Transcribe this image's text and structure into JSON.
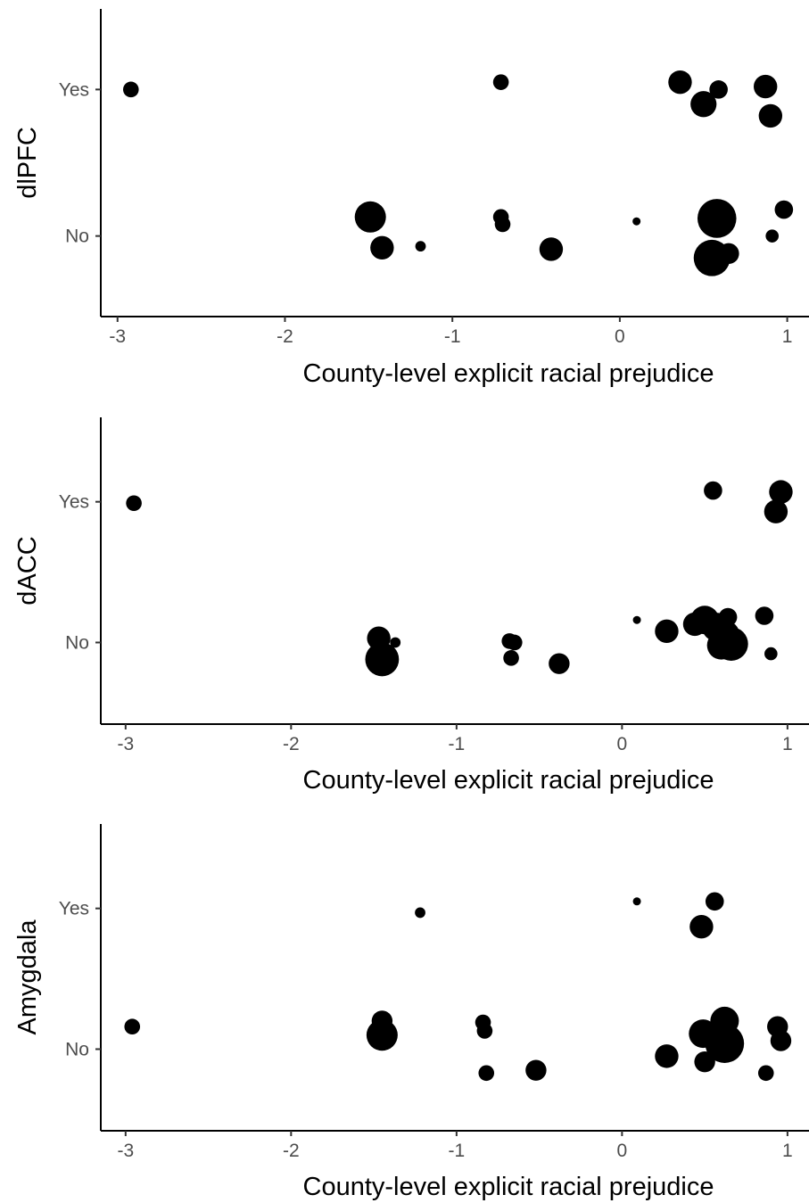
{
  "chart_data": [
    {
      "type": "scatter",
      "ylabel": "dlPFC",
      "xlabel": "County-level explicit racial prejudice",
      "x_ticks": [
        "-3",
        "-2",
        "-1",
        "0",
        "1"
      ],
      "y_categories": [
        "No",
        "Yes"
      ],
      "xlim": [
        -3.1,
        1.13
      ],
      "ylim": [
        -0.55,
        1.55
      ],
      "grid": false,
      "legend": "none",
      "points": [
        {
          "x": -2.92,
          "y": 1.0,
          "size": 4
        },
        {
          "x": -0.71,
          "y": 1.05,
          "size": 4
        },
        {
          "x": 0.36,
          "y": 1.05,
          "size": 7
        },
        {
          "x": 0.5,
          "y": 0.9,
          "size": 8
        },
        {
          "x": 0.59,
          "y": 1.0,
          "size": 5
        },
        {
          "x": 0.87,
          "y": 1.02,
          "size": 7
        },
        {
          "x": 0.9,
          "y": 0.82,
          "size": 7
        },
        {
          "x": -1.49,
          "y": 0.13,
          "size": 10
        },
        {
          "x": -1.42,
          "y": -0.08,
          "size": 7
        },
        {
          "x": -1.19,
          "y": -0.07,
          "size": 2
        },
        {
          "x": -0.71,
          "y": 0.13,
          "size": 4
        },
        {
          "x": -0.7,
          "y": 0.08,
          "size": 4
        },
        {
          "x": -0.41,
          "y": -0.09,
          "size": 7
        },
        {
          "x": 0.1,
          "y": 0.1,
          "size": 1
        },
        {
          "x": 0.58,
          "y": 0.12,
          "size": 13
        },
        {
          "x": 0.65,
          "y": -0.12,
          "size": 6
        },
        {
          "x": 0.55,
          "y": -0.15,
          "size": 12
        },
        {
          "x": 0.98,
          "y": 0.18,
          "size": 5
        },
        {
          "x": 0.91,
          "y": 0.0,
          "size": 3
        }
      ]
    },
    {
      "type": "scatter",
      "ylabel": "dACC",
      "xlabel": "County-level explicit racial prejudice",
      "x_ticks": [
        "-3",
        "-2",
        "-1",
        "0",
        "1"
      ],
      "y_categories": [
        "No",
        "Yes"
      ],
      "xlim": [
        -3.15,
        1.13
      ],
      "ylim": [
        -0.58,
        1.6
      ],
      "grid": false,
      "legend": "none",
      "points": [
        {
          "x": -2.95,
          "y": 0.99,
          "size": 4
        },
        {
          "x": 0.55,
          "y": 1.08,
          "size": 5
        },
        {
          "x": 0.96,
          "y": 1.07,
          "size": 7
        },
        {
          "x": 0.93,
          "y": 0.93,
          "size": 7
        },
        {
          "x": -1.47,
          "y": 0.03,
          "size": 7
        },
        {
          "x": -1.37,
          "y": 0.0,
          "size": 2
        },
        {
          "x": -1.45,
          "y": -0.12,
          "size": 11
        },
        {
          "x": -0.68,
          "y": 0.01,
          "size": 4
        },
        {
          "x": -0.65,
          "y": 0.0,
          "size": 4
        },
        {
          "x": -0.67,
          "y": -0.11,
          "size": 4
        },
        {
          "x": -0.38,
          "y": -0.15,
          "size": 6
        },
        {
          "x": 0.09,
          "y": 0.16,
          "size": 1
        },
        {
          "x": 0.27,
          "y": 0.08,
          "size": 7
        },
        {
          "x": 0.44,
          "y": 0.13,
          "size": 7
        },
        {
          "x": 0.5,
          "y": 0.16,
          "size": 9
        },
        {
          "x": 0.57,
          "y": 0.11,
          "size": 9
        },
        {
          "x": 0.64,
          "y": 0.18,
          "size": 5
        },
        {
          "x": 0.63,
          "y": 0.06,
          "size": 8
        },
        {
          "x": 0.6,
          "y": -0.02,
          "size": 9
        },
        {
          "x": 0.66,
          "y": -0.01,
          "size": 11
        },
        {
          "x": 0.86,
          "y": 0.19,
          "size": 5
        },
        {
          "x": 0.9,
          "y": -0.08,
          "size": 3
        }
      ]
    },
    {
      "type": "scatter",
      "ylabel": "Amygdala",
      "xlabel": "County-level explicit racial prejudice",
      "x_ticks": [
        "-3",
        "-2",
        "-1",
        "0",
        "1"
      ],
      "y_categories": [
        "No",
        "Yes"
      ],
      "xlim": [
        -3.15,
        1.13
      ],
      "ylim": [
        -0.58,
        1.6
      ],
      "grid": false,
      "legend": "none",
      "points": [
        {
          "x": -1.22,
          "y": 0.97,
          "size": 2
        },
        {
          "x": 0.09,
          "y": 1.05,
          "size": 1
        },
        {
          "x": 0.56,
          "y": 1.05,
          "size": 5
        },
        {
          "x": 0.48,
          "y": 0.87,
          "size": 7
        },
        {
          "x": -2.96,
          "y": 0.16,
          "size": 4
        },
        {
          "x": -1.45,
          "y": 0.2,
          "size": 6
        },
        {
          "x": -1.45,
          "y": 0.1,
          "size": 10
        },
        {
          "x": -0.84,
          "y": 0.19,
          "size": 4
        },
        {
          "x": -0.83,
          "y": 0.13,
          "size": 4
        },
        {
          "x": -0.82,
          "y": -0.17,
          "size": 4
        },
        {
          "x": -0.52,
          "y": -0.15,
          "size": 6
        },
        {
          "x": 0.27,
          "y": -0.05,
          "size": 7
        },
        {
          "x": 0.49,
          "y": 0.11,
          "size": 9
        },
        {
          "x": 0.62,
          "y": 0.2,
          "size": 9
        },
        {
          "x": 0.62,
          "y": 0.04,
          "size": 13
        },
        {
          "x": 0.5,
          "y": -0.09,
          "size": 6
        },
        {
          "x": 0.94,
          "y": 0.16,
          "size": 6
        },
        {
          "x": 0.96,
          "y": 0.06,
          "size": 6
        },
        {
          "x": 0.87,
          "y": -0.17,
          "size": 4
        }
      ]
    }
  ]
}
